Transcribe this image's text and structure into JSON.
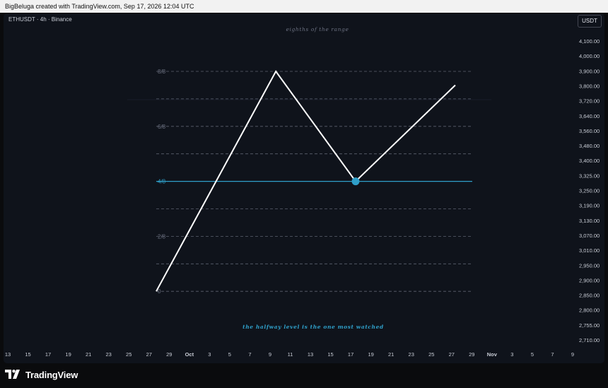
{
  "header": {
    "attribution": "BigBeluga created with TradingView.com, Sep 17, 2026 12:04 UTC"
  },
  "chart_header": {
    "symbol": "ETHUSDT · 4h · Binance",
    "currency": "USDT"
  },
  "footer": {
    "brand": "TradingView",
    "logo_icon": "tradingview-logo-icon"
  },
  "colors": {
    "background": "#0f131b",
    "line": "#ffffff",
    "accent": "#2f9fc9",
    "grid": "#5d6270",
    "label": "#6b7080"
  },
  "chart_data": {
    "type": "line",
    "title": "eighths of the range",
    "annotation": "the halfway level is the one most watched",
    "xlabel": "",
    "ylabel": "",
    "y_axis_labels": [
      "4,100.00",
      "4,000.00",
      "3,900.00",
      "3,800.00",
      "3,720.00",
      "3,640.00",
      "3,560.00",
      "3,480.00",
      "3,400.00",
      "3,325.00",
      "3,250.00",
      "3,190.00",
      "3,130.00",
      "3,070.00",
      "3,010.00",
      "2,950.00",
      "2,900.00",
      "2,850.00",
      "2,800.00",
      "2,755.00",
      "2,710.00"
    ],
    "x_axis_labels": [
      "13",
      "15",
      "17",
      "19",
      "21",
      "23",
      "25",
      "27",
      "29",
      "Oct",
      "3",
      "5",
      "7",
      "9",
      "11",
      "13",
      "15",
      "17",
      "19",
      "21",
      "23",
      "25",
      "27",
      "29",
      "Nov",
      "3",
      "5",
      "7",
      "9"
    ],
    "levels": [
      {
        "eighth": 8,
        "label": "8/8"
      },
      {
        "eighth": 7,
        "label": ""
      },
      {
        "eighth": 6,
        "label": "6/8"
      },
      {
        "eighth": 5,
        "label": ""
      },
      {
        "eighth": 4,
        "label": "4/8",
        "highlight": true
      },
      {
        "eighth": 3,
        "label": ""
      },
      {
        "eighth": 2,
        "label": "2/8"
      },
      {
        "eighth": 1,
        "label": ""
      },
      {
        "eighth": 0,
        "label": "0"
      }
    ],
    "series": [
      {
        "values": [
          {
            "x": "Sep 28",
            "y": 0
          },
          {
            "x": "Oct 10",
            "y": 8
          },
          {
            "x": "Oct 18",
            "y": 4
          },
          {
            "x": "Oct 28",
            "y": 7.5
          }
        ]
      }
    ],
    "marker": {
      "x": "Oct 18",
      "y": 4
    },
    "grid": false,
    "legend": "none"
  }
}
